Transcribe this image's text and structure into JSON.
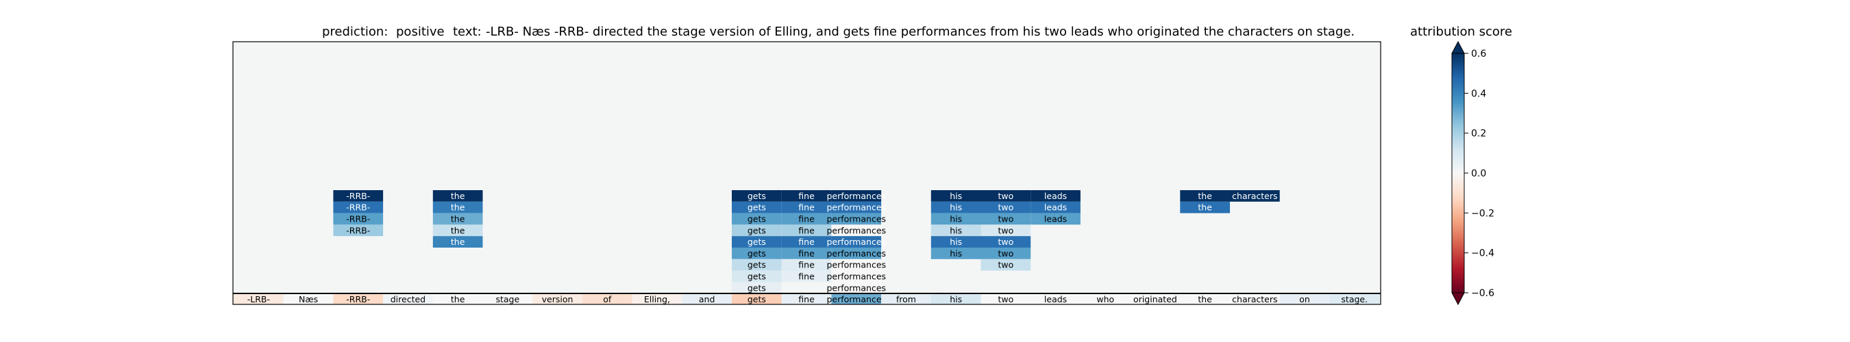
{
  "chart_data": {
    "type": "heatmap",
    "title": {
      "prediction_label": "prediction:",
      "prediction_value": "positive",
      "text_label": "text:",
      "text_value": "-LRB- Næs -RRB- directed the stage version of Elling, and gets fine performances from his two leads who originated the characters on stage."
    },
    "tokens": [
      "-LRB-",
      "Næs",
      "-RRB-",
      "directed",
      "the",
      "stage",
      "version",
      "of",
      "Elling,",
      "and",
      "gets",
      "fine",
      "performances",
      "from",
      "his",
      "two",
      "leads",
      "who",
      "originated",
      "the",
      "characters",
      "on",
      "stage."
    ],
    "base_scores": [
      -0.06,
      0.0,
      -0.12,
      0.02,
      0.0,
      0.0,
      -0.05,
      -0.1,
      -0.03,
      0.05,
      -0.15,
      0.05,
      0.3,
      0.06,
      0.1,
      0.0,
      0.0,
      0.0,
      0.0,
      0.0,
      0.0,
      0.05,
      0.08
    ],
    "stack_rows_from_top": [
      {
        "text": "-RRB-",
        "token_index": 2,
        "row": 0,
        "score": 0.6
      },
      {
        "text": "-RRB-",
        "token_index": 2,
        "row": 1,
        "score": 0.45
      },
      {
        "text": "-RRB-",
        "token_index": 2,
        "row": 2,
        "score": 0.33
      },
      {
        "text": "-RRB-",
        "token_index": 2,
        "row": 3,
        "score": 0.22
      },
      {
        "text": "the",
        "token_index": 4,
        "row": 0,
        "score": 0.6
      },
      {
        "text": "the",
        "token_index": 4,
        "row": 1,
        "score": 0.42
      },
      {
        "text": "the",
        "token_index": 4,
        "row": 2,
        "score": 0.3
      },
      {
        "text": "the",
        "token_index": 4,
        "row": 3,
        "score": 0.14
      },
      {
        "text": "the",
        "token_index": 4,
        "row": 4,
        "score": 0.4
      },
      {
        "text": "gets",
        "token_index": 10,
        "row": 0,
        "score": 0.6
      },
      {
        "text": "gets",
        "token_index": 10,
        "row": 1,
        "score": 0.45
      },
      {
        "text": "gets",
        "token_index": 10,
        "row": 2,
        "score": 0.33
      },
      {
        "text": "gets",
        "token_index": 10,
        "row": 3,
        "score": 0.2
      },
      {
        "text": "gets",
        "token_index": 10,
        "row": 4,
        "score": 0.45
      },
      {
        "text": "gets",
        "token_index": 10,
        "row": 5,
        "score": 0.33
      },
      {
        "text": "gets",
        "token_index": 10,
        "row": 6,
        "score": 0.15
      },
      {
        "text": "gets",
        "token_index": 10,
        "row": 7,
        "score": 0.1
      },
      {
        "text": "gets",
        "token_index": 10,
        "row": 8,
        "score": 0.05
      },
      {
        "text": "fine",
        "token_index": 11,
        "row": 0,
        "score": 0.6
      },
      {
        "text": "fine",
        "token_index": 11,
        "row": 1,
        "score": 0.45
      },
      {
        "text": "fine",
        "token_index": 11,
        "row": 2,
        "score": 0.33
      },
      {
        "text": "fine",
        "token_index": 11,
        "row": 3,
        "score": 0.2
      },
      {
        "text": "fine",
        "token_index": 11,
        "row": 4,
        "score": 0.45
      },
      {
        "text": "fine",
        "token_index": 11,
        "row": 5,
        "score": 0.33
      },
      {
        "text": "fine",
        "token_index": 11,
        "row": 6,
        "score": 0.08
      },
      {
        "text": "fine",
        "token_index": 11,
        "row": 7,
        "score": 0.06
      },
      {
        "text": "performances",
        "token_index": 12,
        "row": 0,
        "score": 0.6
      },
      {
        "text": "performances",
        "token_index": 12,
        "row": 1,
        "score": 0.45
      },
      {
        "text": "performances",
        "token_index": 12,
        "row": 2,
        "score": 0.33
      },
      {
        "text": "performances",
        "token_index": 12,
        "row": 3,
        "score": 0.0
      },
      {
        "text": "performances",
        "token_index": 12,
        "row": 4,
        "score": 0.45
      },
      {
        "text": "performances",
        "token_index": 12,
        "row": 5,
        "score": 0.33
      },
      {
        "text": "performances",
        "token_index": 12,
        "row": 6,
        "score": 0.0
      },
      {
        "text": "performances",
        "token_index": 12,
        "row": 7,
        "score": 0.0
      },
      {
        "text": "performances",
        "token_index": 12,
        "row": 8,
        "score": 0.0
      },
      {
        "text": "his",
        "token_index": 14,
        "row": 0,
        "score": 0.6
      },
      {
        "text": "his",
        "token_index": 14,
        "row": 1,
        "score": 0.45
      },
      {
        "text": "his",
        "token_index": 14,
        "row": 2,
        "score": 0.33
      },
      {
        "text": "his",
        "token_index": 14,
        "row": 3,
        "score": 0.15
      },
      {
        "text": "his",
        "token_index": 14,
        "row": 4,
        "score": 0.45
      },
      {
        "text": "his",
        "token_index": 14,
        "row": 5,
        "score": 0.33
      },
      {
        "text": "two",
        "token_index": 15,
        "row": 0,
        "score": 0.6
      },
      {
        "text": "two",
        "token_index": 15,
        "row": 1,
        "score": 0.45
      },
      {
        "text": "two",
        "token_index": 15,
        "row": 2,
        "score": 0.33
      },
      {
        "text": "two",
        "token_index": 15,
        "row": 3,
        "score": 0.1
      },
      {
        "text": "two",
        "token_index": 15,
        "row": 4,
        "score": 0.45
      },
      {
        "text": "two",
        "token_index": 15,
        "row": 5,
        "score": 0.33
      },
      {
        "text": "two",
        "token_index": 15,
        "row": 6,
        "score": 0.14
      },
      {
        "text": "leads",
        "token_index": 16,
        "row": 0,
        "score": 0.6
      },
      {
        "text": "leads",
        "token_index": 16,
        "row": 1,
        "score": 0.45
      },
      {
        "text": "leads",
        "token_index": 16,
        "row": 2,
        "score": 0.33
      },
      {
        "text": "the",
        "token_index": 19,
        "row": 0,
        "score": 0.6
      },
      {
        "text": "the",
        "token_index": 19,
        "row": 1,
        "score": 0.45
      },
      {
        "text": "characters",
        "token_index": 20,
        "row": 0,
        "score": 0.6
      }
    ],
    "colorbar": {
      "label": "attribution score",
      "range": [
        -0.6,
        0.6
      ],
      "ticks": [
        0.6,
        0.4,
        0.2,
        0.0,
        -0.2,
        -0.4,
        -0.6
      ],
      "tick_labels": [
        "0.6",
        "0.4",
        "0.2",
        "0.0",
        "−0.2",
        "−0.4",
        "−0.6"
      ],
      "colormap": "RdBu",
      "extend": "both"
    },
    "background_color": "#f4f6f6"
  }
}
